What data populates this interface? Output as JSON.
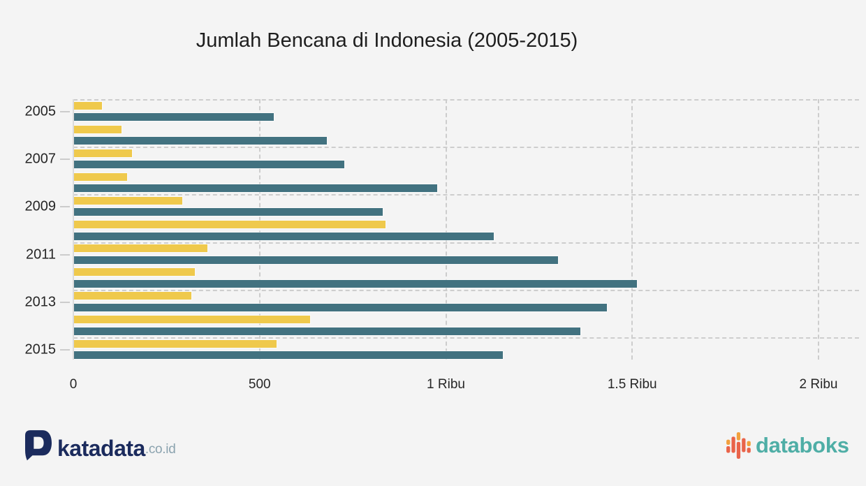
{
  "title": "Jumlah Bencana di Indonesia (2005-2015)",
  "chart_data": {
    "type": "bar",
    "orientation": "horizontal",
    "title": "Jumlah Bencana di Indonesia (2005-2015)",
    "categories": [
      "2005",
      "2006",
      "2007",
      "2008",
      "2009",
      "2010",
      "2011",
      "2012",
      "2013",
      "2014",
      "2015"
    ],
    "series": [
      {
        "name": "yellow",
        "color": "#EFC94C",
        "values": [
          77,
          129,
          158,
          145,
          292,
          838,
          360,
          326,
          317,
          635,
          545
        ]
      },
      {
        "name": "teal",
        "color": "#427280",
        "values": [
          538,
          680,
          728,
          977,
          830,
          1128,
          1300,
          1513,
          1432,
          1360,
          1153
        ]
      }
    ],
    "xlabel": "",
    "ylabel": "",
    "xlim": [
      0,
      2000
    ],
    "x_ticks": [
      {
        "value": 0,
        "label": "0"
      },
      {
        "value": 500,
        "label": "500"
      },
      {
        "value": 1000,
        "label": "1 Ribu"
      },
      {
        "value": 1500,
        "label": "1.5 Ribu"
      },
      {
        "value": 2000,
        "label": "2 Ribu"
      }
    ],
    "y_tick_labels": [
      "2005",
      "2007",
      "2009",
      "2011",
      "2013",
      "2015"
    ],
    "grid": true,
    "legend": "none"
  },
  "footer": {
    "katadata": {
      "brand": "katadata",
      "suffix": ".co.id"
    },
    "databoks": {
      "brand": "databoks"
    }
  },
  "colors": {
    "background": "#F4F4F4",
    "bar_yellow": "#EFC94C",
    "bar_teal": "#427280",
    "gridline": "#CDCDCD",
    "text": "#262626",
    "katadata_navy": "#1B2B5D",
    "katadata_suffix_gray": "#8BA3AF",
    "databoks_teal": "#4FAEA6",
    "databoks_orange": "#F2A03D",
    "databoks_red": "#E96349"
  }
}
